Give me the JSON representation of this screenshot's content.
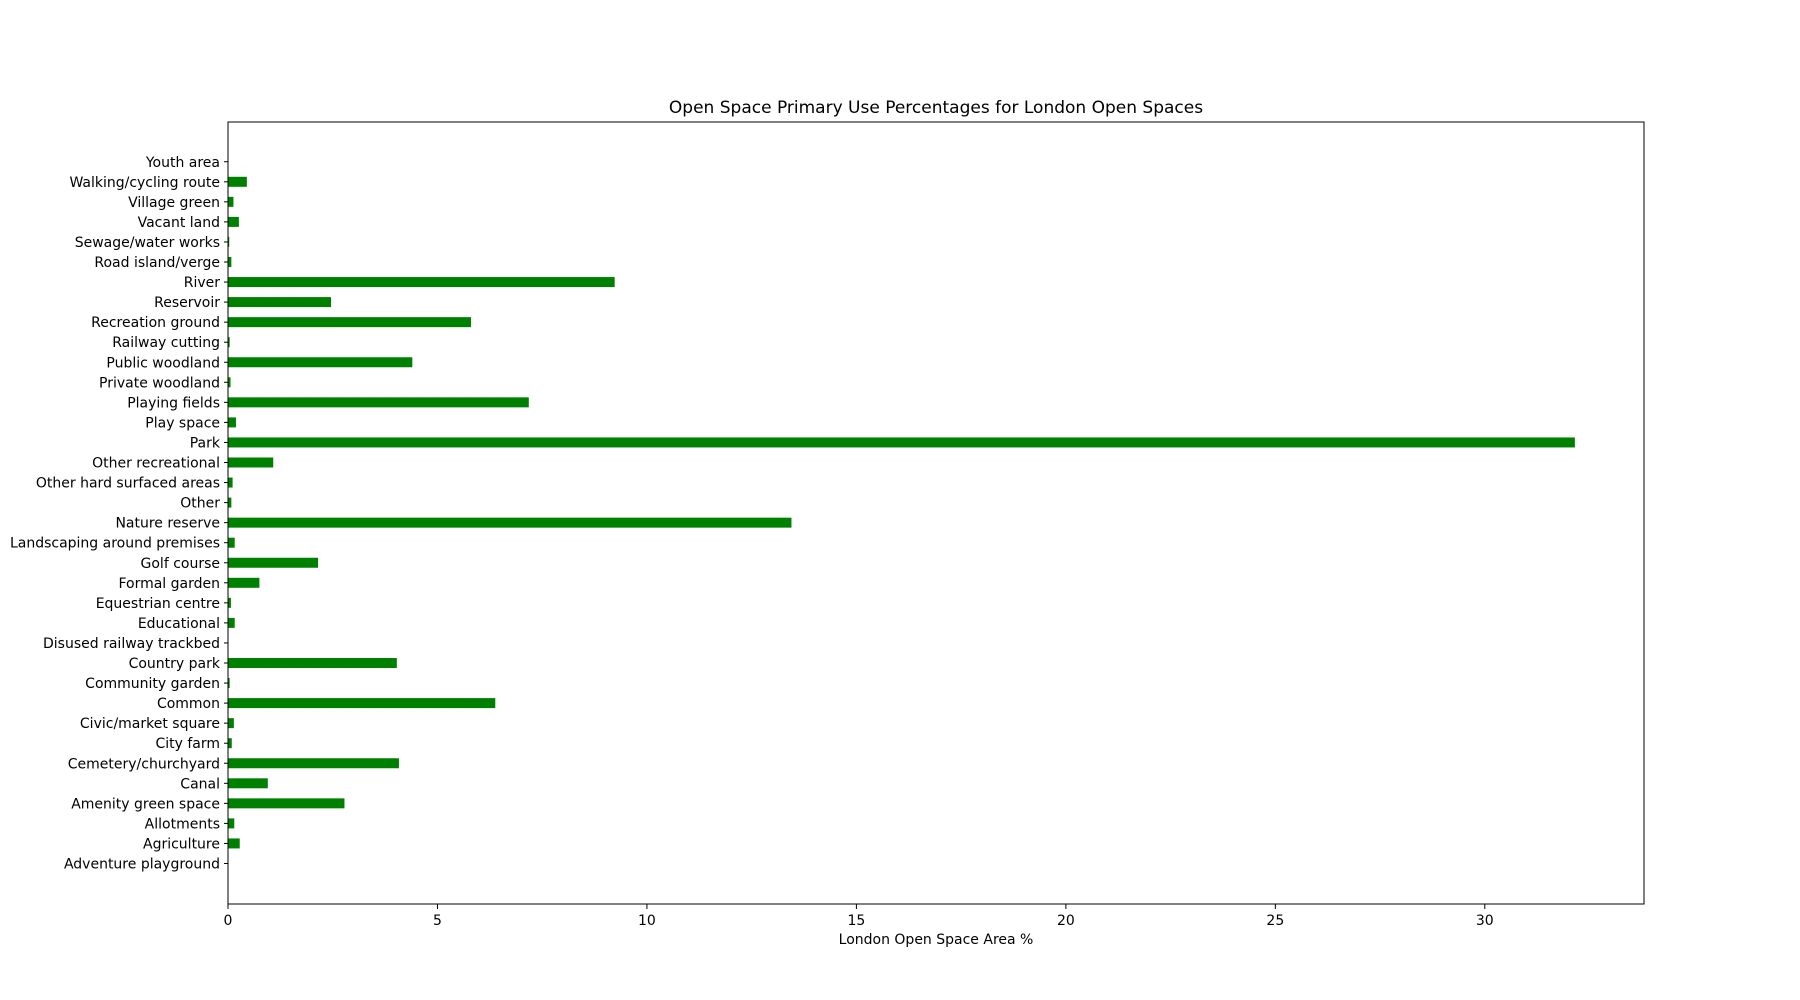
{
  "chart_data": {
    "type": "bar",
    "orientation": "horizontal",
    "title": "Open Space Primary Use Percentages for London Open Spaces",
    "xlabel": "London Open Space Area %",
    "ylabel": "",
    "xlim": [
      0,
      33.8
    ],
    "xticks": [
      0,
      5,
      10,
      15,
      20,
      25,
      30
    ],
    "grid": false,
    "bar_color": "#008000",
    "categories": [
      "Adventure playground",
      "Agriculture",
      "Allotments",
      "Amenity green space",
      "Canal",
      "Cemetery/churchyard",
      "City farm",
      "Civic/market square",
      "Common",
      "Community garden",
      "Country park",
      "Disused railway trackbed",
      "Educational",
      "Equestrian centre",
      "Formal garden",
      "Golf course",
      "Landscaping around premises",
      "Nature reserve",
      "Other",
      "Other hard surfaced areas",
      "Other recreational",
      "Park",
      "Play space",
      "Playing fields",
      "Private woodland",
      "Public woodland",
      "Railway cutting",
      "Recreation ground",
      "Reservoir",
      "River",
      "Road island/verge",
      "Sewage/water works",
      "Vacant land",
      "Village green",
      "Walking/cycling route",
      "Youth area"
    ],
    "values": [
      0.01,
      0.28,
      0.15,
      2.78,
      0.95,
      4.08,
      0.09,
      0.14,
      6.38,
      0.04,
      4.03,
      0.01,
      0.16,
      0.07,
      0.75,
      2.15,
      0.16,
      13.45,
      0.08,
      0.11,
      1.08,
      32.15,
      0.19,
      7.18,
      0.06,
      4.4,
      0.04,
      5.8,
      2.46,
      9.23,
      0.08,
      0.03,
      0.26,
      0.13,
      0.45,
      0.01
    ]
  }
}
